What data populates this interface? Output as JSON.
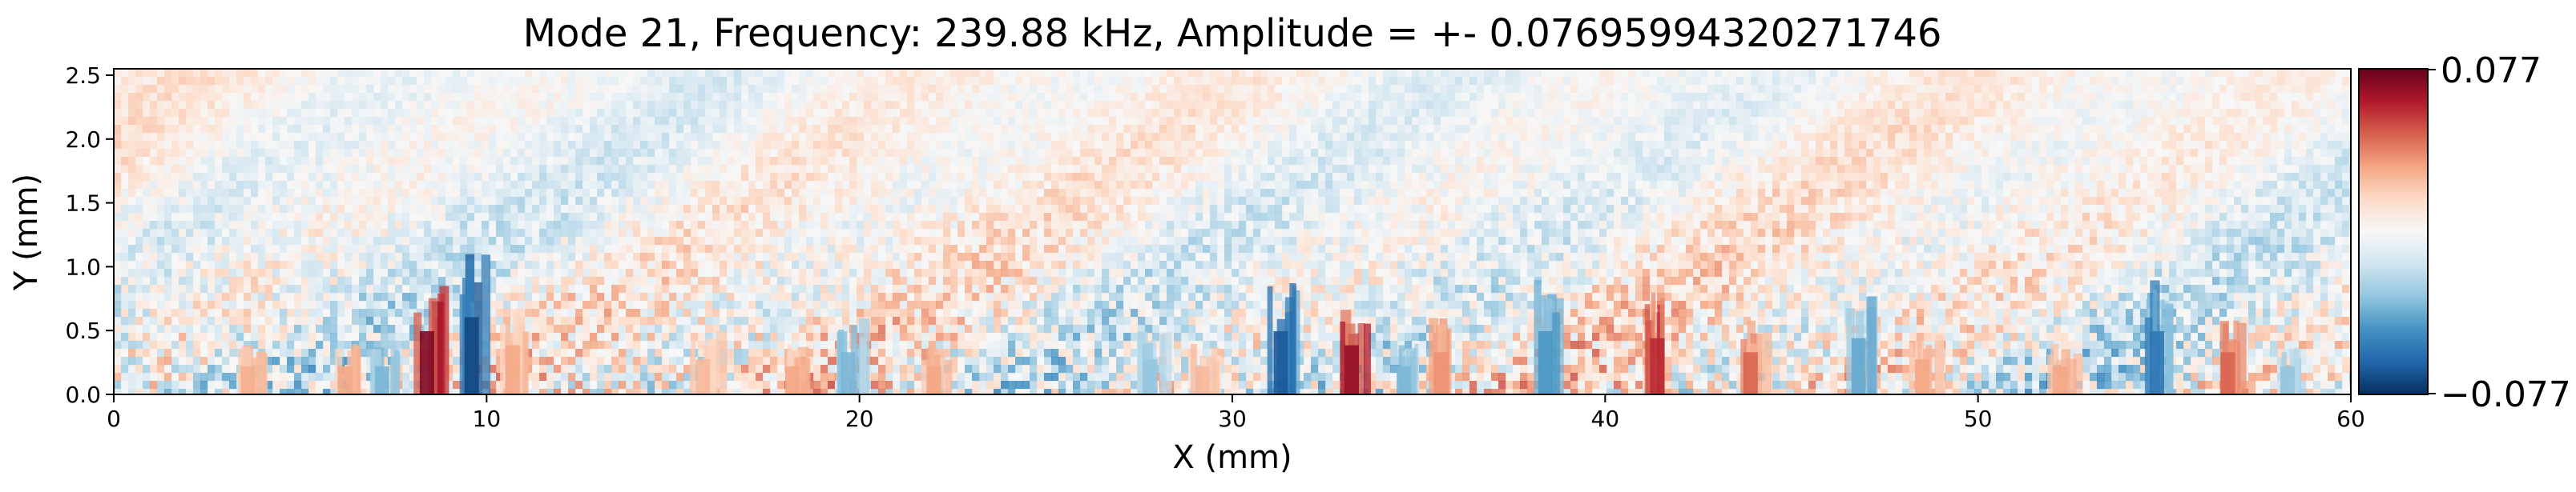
{
  "chart_data": {
    "type": "heatmap",
    "title": "Mode 21, Frequency: 239.88 kHz, Amplitude = +- 0.07695994320271746",
    "xlabel": "X (mm)",
    "ylabel": "Y (mm)",
    "xlim": [
      0,
      60
    ],
    "ylim": [
      0,
      2.55
    ],
    "x_ticks": [
      0,
      10,
      20,
      30,
      40,
      50,
      60
    ],
    "y_ticks": [
      0.0,
      0.5,
      1.0,
      1.5,
      2.0,
      2.5
    ],
    "x_tick_labels": [
      "0",
      "10",
      "20",
      "30",
      "40",
      "50",
      "60"
    ],
    "y_tick_labels": [
      "0.0",
      "0.5",
      "1.0",
      "1.5",
      "2.0",
      "2.5"
    ],
    "colormap": "RdBu_r",
    "vmin": -0.07695994320271746,
    "vmax": 0.07695994320271746,
    "colorbar": {
      "max_label": "0.077",
      "min_label": "−0.077",
      "colors": [
        "#053061",
        "#2166ac",
        "#4393c3",
        "#92c5de",
        "#d1e5f0",
        "#f7f7f7",
        "#fddbc7",
        "#f4a582",
        "#d6604d",
        "#b2182b",
        "#67001f"
      ]
    },
    "hotspots": [
      {
        "x": 8.4,
        "y_top": 0.9,
        "value": 0.072
      },
      {
        "x": 9.6,
        "y_top": 1.1,
        "value": -0.07
      },
      {
        "x": 10.7,
        "y_top": 0.7,
        "value": 0.03
      },
      {
        "x": 6.2,
        "y_top": 0.4,
        "value": 0.03
      },
      {
        "x": 7.2,
        "y_top": 0.4,
        "value": -0.035
      },
      {
        "x": 3.6,
        "y_top": 0.4,
        "value": 0.028
      },
      {
        "x": 15.8,
        "y_top": 0.5,
        "value": 0.025
      },
      {
        "x": 18.2,
        "y_top": 0.4,
        "value": 0.03
      },
      {
        "x": 19.7,
        "y_top": 0.6,
        "value": -0.035
      },
      {
        "x": 22.0,
        "y_top": 0.4,
        "value": 0.03
      },
      {
        "x": 27.8,
        "y_top": 0.5,
        "value": -0.03
      },
      {
        "x": 29.2,
        "y_top": 0.4,
        "value": 0.025
      },
      {
        "x": 31.3,
        "y_top": 0.9,
        "value": -0.065
      },
      {
        "x": 33.2,
        "y_top": 0.7,
        "value": 0.068
      },
      {
        "x": 34.6,
        "y_top": 0.4,
        "value": -0.035
      },
      {
        "x": 35.6,
        "y_top": 0.6,
        "value": 0.035
      },
      {
        "x": 38.4,
        "y_top": 0.9,
        "value": -0.045
      },
      {
        "x": 41.4,
        "y_top": 0.8,
        "value": 0.058
      },
      {
        "x": 43.9,
        "y_top": 0.6,
        "value": 0.045
      },
      {
        "x": 46.8,
        "y_top": 0.8,
        "value": -0.04
      },
      {
        "x": 48.5,
        "y_top": 0.5,
        "value": 0.03
      },
      {
        "x": 52.2,
        "y_top": 0.4,
        "value": 0.03
      },
      {
        "x": 54.8,
        "y_top": 0.9,
        "value": -0.055
      },
      {
        "x": 56.7,
        "y_top": 0.6,
        "value": 0.045
      },
      {
        "x": 58.3,
        "y_top": 0.4,
        "value": -0.03
      }
    ]
  }
}
